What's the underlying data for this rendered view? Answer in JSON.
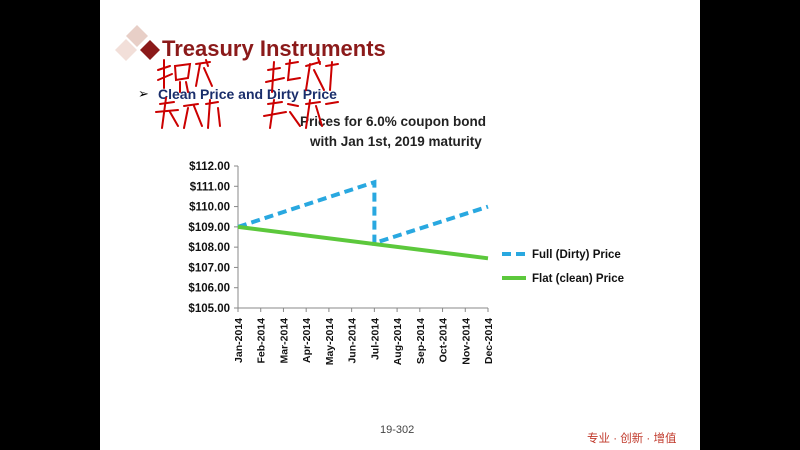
{
  "slide": {
    "title": "Treasury Instruments",
    "bullet_marker": "➢",
    "bullet_text": "Clean Price and Dirty Price",
    "chart_title_line1": "Prices for 6.0% coupon bond",
    "chart_title_line2": "with Jan 1st, 2019 maturity",
    "page_number": "19-302",
    "footer_logo": "专业 · 创新 · 增值",
    "accent_color": "#8b1a1a",
    "ink_color": "#cc0000"
  },
  "chart_data": {
    "type": "line",
    "title": "Prices for 6.0% coupon bond with Jan 1st, 2019 maturity",
    "categories": [
      "Jan-2014",
      "Feb-2014",
      "Mar-2014",
      "Apr-2014",
      "May-2014",
      "Jun-2014",
      "Jul-2014",
      "Aug-2014",
      "Sep-2014",
      "Oct-2014",
      "Nov-2014",
      "Dec-2014"
    ],
    "y_ticks": [
      "$105.00",
      "$106.00",
      "$107.00",
      "$108.00",
      "$109.00",
      "$110.00",
      "$111.00",
      "$112.00"
    ],
    "ylim": [
      105,
      112
    ],
    "grid": false,
    "legend_position": "right",
    "series": [
      {
        "name": "Full (Dirty) Price",
        "style": "dashed",
        "color": "#29a8e0",
        "points": [
          [
            0,
            109.0
          ],
          [
            6,
            111.2
          ],
          [
            6,
            108.2
          ],
          [
            11,
            110.0
          ]
        ]
      },
      {
        "name": "Flat (clean) Price",
        "style": "solid",
        "color": "#5cc83c",
        "points": [
          [
            0,
            109.0
          ],
          [
            11,
            107.45
          ]
        ]
      }
    ]
  }
}
